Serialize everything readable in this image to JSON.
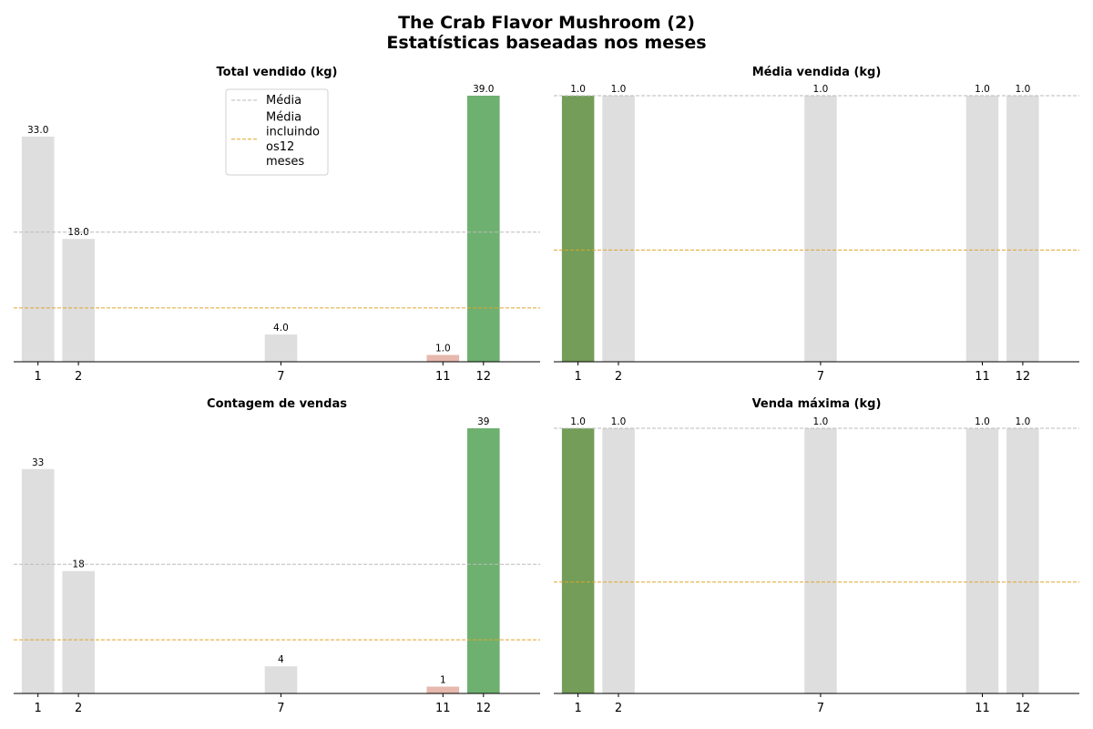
{
  "figure": {
    "title_line1": "The Crab Flavor Mushroom (2)",
    "title_line2": "Estatísticas baseadas nos meses"
  },
  "colors": {
    "default_bar": "#dedede",
    "max_bar_sum": "#6eb070",
    "max_bar_mean": "#739d58",
    "min_bar": "#e6b8ae",
    "mean_line": "#bbbbbb",
    "mean_all_line": "#e0a52a"
  },
  "legend": {
    "entries": [
      {
        "label_lines": [
          "Média"
        ],
        "style": "mean"
      },
      {
        "label_lines": [
          "Média",
          "incluindo",
          "os12",
          "meses"
        ],
        "style": "mean_all"
      }
    ]
  },
  "chart_data": [
    {
      "type": "bar",
      "title": "Total vendido (kg)",
      "categories": [
        "1",
        "2",
        "7",
        "11",
        "12"
      ],
      "values": [
        33.0,
        18.0,
        4.0,
        1.0,
        39.0
      ],
      "labels": [
        "33.0",
        "18.0",
        "4.0",
        "1.0",
        "39.0"
      ],
      "highlight": {
        "max_index": 4,
        "max_color": "max_bar_sum",
        "min_index": 3
      },
      "mean": 19.0,
      "mean_all_months": 7.9,
      "ylim": [
        0,
        39.0
      ],
      "legend": "upper-center",
      "grid": false
    },
    {
      "type": "bar",
      "title": "Média vendida (kg)",
      "categories": [
        "1",
        "2",
        "7",
        "11",
        "12"
      ],
      "values": [
        1.0,
        1.0,
        1.0,
        1.0,
        1.0
      ],
      "labels": [
        "1.0",
        "1.0",
        "1.0",
        "1.0",
        "1.0"
      ],
      "highlight": {
        "max_index": 0,
        "max_color": "max_bar_mean",
        "min_index": null
      },
      "mean": 1.0,
      "mean_all_months": 0.42,
      "ylim": [
        0,
        1.0
      ],
      "grid": false
    },
    {
      "type": "bar",
      "title": "Contagem de vendas",
      "categories": [
        "1",
        "2",
        "7",
        "11",
        "12"
      ],
      "values": [
        33,
        18,
        4,
        1,
        39
      ],
      "labels": [
        "33",
        "18",
        "4",
        "1",
        "39"
      ],
      "highlight": {
        "max_index": 4,
        "max_color": "max_bar_sum",
        "min_index": 3
      },
      "mean": 19.0,
      "mean_all_months": 7.9,
      "ylim": [
        0,
        39
      ],
      "grid": false
    },
    {
      "type": "bar",
      "title": "Venda máxima (kg)",
      "categories": [
        "1",
        "2",
        "7",
        "11",
        "12"
      ],
      "values": [
        1.0,
        1.0,
        1.0,
        1.0,
        1.0
      ],
      "labels": [
        "1.0",
        "1.0",
        "1.0",
        "1.0",
        "1.0"
      ],
      "highlight": {
        "max_index": 0,
        "max_color": "max_bar_mean",
        "min_index": null
      },
      "mean": 1.0,
      "mean_all_months": 0.42,
      "ylim": [
        0,
        1.0
      ],
      "grid": false
    }
  ]
}
